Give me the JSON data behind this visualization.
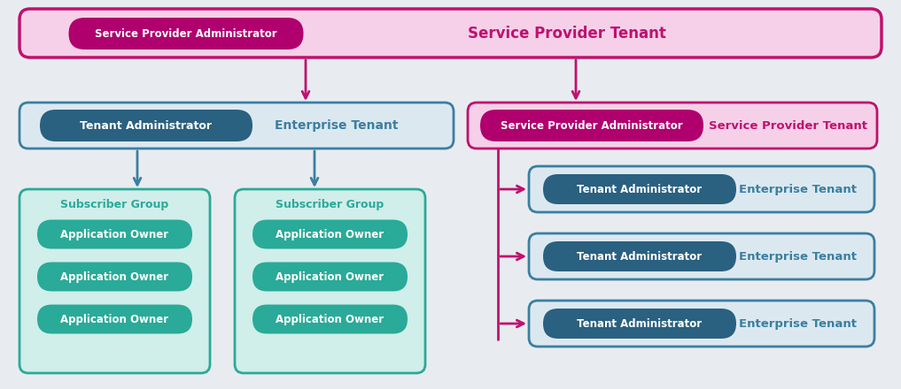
{
  "bg_color": "#e8ecf0",
  "colors": {
    "pink_bg": "#f5d0e8",
    "pink_border": "#c0106e",
    "pink_pill": "#b0006e",
    "teal_bg": "#d0eeea",
    "teal_border": "#2aaa98",
    "teal_pill": "#2aaa98",
    "teal_text": "#2aaa98",
    "blue_bg": "#dce8f0",
    "blue_border": "#3a7fa0",
    "blue_pill": "#2a6080",
    "blue_text": "#3a7fa0",
    "arrow_pink": "#c0106e",
    "arrow_blue": "#3a7fa0",
    "white": "#ffffff"
  },
  "texts": {
    "sp_admin": "Service Provider Administrator",
    "sp_tenant": "Service Provider Tenant",
    "tenant_admin": "Tenant Administrator",
    "enterprise_tenant": "Enterprise Tenant",
    "subscriber_group": "Subscriber Group",
    "app_owner": "Application Owner"
  }
}
